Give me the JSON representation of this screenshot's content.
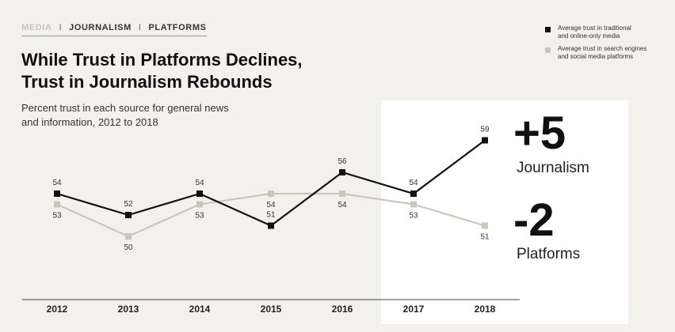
{
  "header": {
    "breadcrumb": [
      "MEDIA",
      "JOURNALISM",
      "PLATFORMS"
    ],
    "separator": "I",
    "title_line1": "While Trust in Platforms Declines,",
    "title_line2": "Trust in Journalism Rebounds",
    "subtitle_line1": "Percent trust in each source for general news",
    "subtitle_line2": "and information, 2012 to 2018"
  },
  "legend": {
    "journalism_line1": "Average trust in traditional",
    "journalism_line2": "and online-only media",
    "platforms_line1": "Average trust in search engines",
    "platforms_line2": "and social media platforms"
  },
  "callouts": {
    "journalism_change": "+5",
    "journalism_label": "Journalism",
    "platforms_change": "-2",
    "platforms_label": "Platforms"
  },
  "colors": {
    "journalism": "#111111",
    "platforms": "#c9c6ba",
    "background": "#f3f1ec",
    "highlight": "#ffffff"
  },
  "chart_data": {
    "type": "line",
    "title": "While Trust in Platforms Declines, Trust in Journalism Rebounds",
    "subtitle": "Percent trust in each source for general news and information, 2012 to 2018",
    "categories": [
      "2012",
      "2013",
      "2014",
      "2015",
      "2016",
      "2017",
      "2018"
    ],
    "series": [
      {
        "name": "Average trust in traditional and online-only media",
        "key": "journalism",
        "values": [
          54,
          52,
          54,
          51,
          56,
          54,
          59
        ]
      },
      {
        "name": "Average trust in search engines and social media platforms",
        "key": "platforms",
        "values": [
          53,
          50,
          53,
          54,
          54,
          53,
          51
        ]
      }
    ],
    "ylim": [
      48,
      60
    ],
    "xlabel": "",
    "ylabel": "",
    "grid": false,
    "legend_position": "top-right"
  }
}
